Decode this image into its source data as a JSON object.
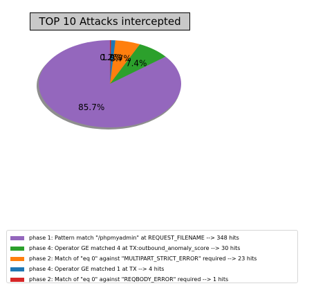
{
  "chart_data": {
    "type": "pie",
    "title": "TOP 10 Attacks intercepted",
    "legend_position": "bottom-left",
    "shadow": true,
    "start_angle_deg": 90,
    "direction": "counterclockwise",
    "slices": [
      {
        "label": "phase 1: Pattern match \"/phpmyadmin\" at REQUEST_FILENAME --> 348 hits",
        "value": 348,
        "pct_label": "85.7%",
        "color": "#9467bd"
      },
      {
        "label": "phase 4: Operator GE matched 4 at TX:outbound_anomaly_score --> 30 hits",
        "value": 30,
        "pct_label": "7.4%",
        "color": "#2ca02c"
      },
      {
        "label": "phase 2: Match of \"eq 0\" against \"MULTIPART_STRICT_ERROR\" required --> 23 hits",
        "value": 23,
        "pct_label": "5.7%",
        "color": "#ff7f0e"
      },
      {
        "label": "phase 4: Operator GE matched 1 at TX --> 4 hits",
        "value": 4,
        "pct_label": "1.0%",
        "color": "#1f77b4"
      },
      {
        "label": "phase 2: Match of \"eq 0\" against \"REQBODY_ERROR\" required --> 1 hits",
        "value": 1,
        "pct_label": "0.2%",
        "color": "#d62728"
      }
    ]
  }
}
